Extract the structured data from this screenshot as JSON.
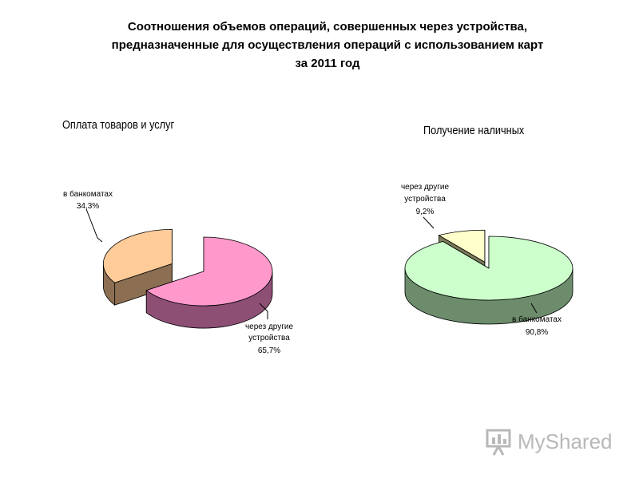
{
  "title": {
    "line1": "Соотношения объемов операций, совершенных через устройства,",
    "line2": "предназначенные для осуществления операций с использованием карт",
    "line3": "за 2011 год"
  },
  "colors": {
    "left_atm_top": "#FFCC99",
    "left_atm_side": "#8C6F52",
    "left_other_top": "#FF99CC",
    "left_other_side": "#8E4F75",
    "right_atm_top": "#CCFFCC",
    "right_atm_side": "#6C8C6C",
    "right_other_top": "#FFFFCC",
    "right_other_side": "#7A7A5A"
  },
  "chart_data": [
    {
      "type": "pie",
      "title": "Оплата товаров и услуг",
      "slices": [
        {
          "label_line1": "в банкоматах",
          "label_line2": "",
          "value_label": "34,3%",
          "value": 34.3,
          "exploded": true
        },
        {
          "label_line1": "через другие",
          "label_line2": "устройства",
          "value_label": "65,7%",
          "value": 65.7,
          "exploded": false
        }
      ]
    },
    {
      "type": "pie",
      "title": "Получение наличных",
      "slices": [
        {
          "label_line1": "через другие",
          "label_line2": "устройства",
          "value_label": "9,2%",
          "value": 9.2,
          "exploded": true
        },
        {
          "label_line1": "в банкоматах",
          "label_line2": "",
          "value_label": "90,8%",
          "value": 90.8,
          "exploded": false
        }
      ]
    }
  ],
  "watermark": {
    "text": "MyShared",
    "icon": "presentation-board-icon"
  }
}
